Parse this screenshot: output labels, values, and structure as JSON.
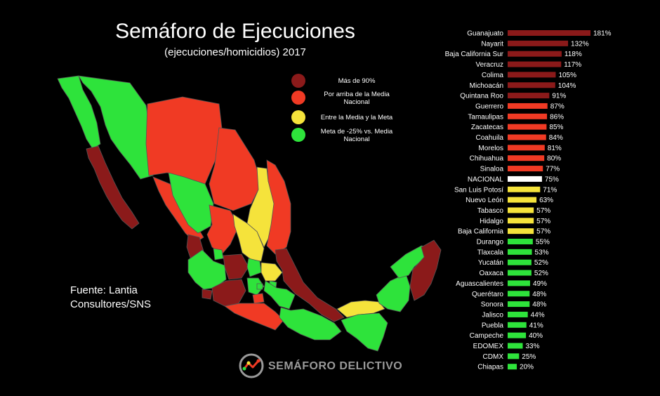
{
  "title": "Semáforo de Ejecuciones",
  "subtitle": "(ejecuciones/homicidios) 2017",
  "source": [
    "Fuente: Lantia",
    "Consultores/SNS"
  ],
  "brand": "SEMÁFORO DELICTIVO",
  "legend": [
    {
      "label": "Más de 90%",
      "color": "#8B1A1A"
    },
    {
      "label": "Por arriba de la Media Nacional",
      "color": "#F03A24"
    },
    {
      "label": "Entre la Media y la Meta",
      "color": "#F5E33B"
    },
    {
      "label": "Meta de -25% vs. Media Nacional",
      "color": "#2EE33B"
    }
  ],
  "colors": {
    "dark_red": "#8B1A1A",
    "red": "#F03A24",
    "yellow": "#F5E33B",
    "green": "#2EE33B",
    "national": "#FFFFFF"
  },
  "chart_data": {
    "type": "bar",
    "orientation": "horizontal",
    "title": "Semáforo de Ejecuciones",
    "xlabel": "",
    "ylabel": "",
    "xlim": [
      0,
      181
    ],
    "grid": false,
    "categories": [
      "Guanajuato",
      "Nayarit",
      "Baja California Sur",
      "Veracruz",
      "Colima",
      "Michoacán",
      "Quintana Roo",
      "Guerrero",
      "Tamaulipas",
      "Zacatecas",
      "Coahuila",
      "Morelos",
      "Chihuahua",
      "Sinaloa",
      "NACIONAL",
      "San Luis Potosí",
      "Nuevo León",
      "Tabasco",
      "Hidalgo",
      "Baja California",
      "Durango",
      "Tlaxcala",
      "Yucatán",
      "Oaxaca",
      "Aguascalientes",
      "Querétaro",
      "Sonora",
      "Jalisco",
      "Puebla",
      "Campeche",
      "EDOMEX",
      "CDMX",
      "Chiapas"
    ],
    "values": [
      181,
      132,
      118,
      117,
      105,
      104,
      91,
      87,
      86,
      85,
      84,
      81,
      80,
      77,
      75,
      71,
      63,
      57,
      57,
      57,
      55,
      53,
      52,
      52,
      49,
      48,
      48,
      44,
      41,
      40,
      33,
      25,
      20
    ],
    "value_labels": [
      "181%",
      "132%",
      "118%",
      "117%",
      "105%",
      "104%",
      "91%",
      "87%",
      "86%",
      "85%",
      "84%",
      "81%",
      "80%",
      "77%",
      "75%",
      "71%",
      "63%",
      "57%",
      "57%",
      "57%",
      "55%",
      "53%",
      "52%",
      "52%",
      "49%",
      "48%",
      "48%",
      "44%",
      "41%",
      "40%",
      "33%",
      "25%",
      "20%"
    ],
    "bar_colors": [
      "#8B1A1A",
      "#8B1A1A",
      "#8B1A1A",
      "#8B1A1A",
      "#8B1A1A",
      "#8B1A1A",
      "#8B1A1A",
      "#F03A24",
      "#F03A24",
      "#F03A24",
      "#F03A24",
      "#F03A24",
      "#F03A24",
      "#F03A24",
      "#FFFFFF",
      "#F5E33B",
      "#F5E33B",
      "#F5E33B",
      "#F5E33B",
      "#F5E33B",
      "#2EE33B",
      "#2EE33B",
      "#2EE33B",
      "#2EE33B",
      "#2EE33B",
      "#2EE33B",
      "#2EE33B",
      "#2EE33B",
      "#2EE33B",
      "#2EE33B",
      "#2EE33B",
      "#2EE33B",
      "#2EE33B"
    ]
  },
  "map_states": [
    {
      "name": "Baja California",
      "color": "#2EE33B"
    },
    {
      "name": "Baja California Sur",
      "color": "#8B1A1A"
    },
    {
      "name": "Sonora",
      "color": "#2EE33B"
    },
    {
      "name": "Chihuahua",
      "color": "#F03A24"
    },
    {
      "name": "Coahuila",
      "color": "#F03A24"
    },
    {
      "name": "Nuevo León",
      "color": "#F5E33B"
    },
    {
      "name": "Tamaulipas",
      "color": "#F03A24"
    },
    {
      "name": "Sinaloa",
      "color": "#F03A24"
    },
    {
      "name": "Durango",
      "color": "#2EE33B"
    },
    {
      "name": "Zacatecas",
      "color": "#F03A24"
    },
    {
      "name": "San Luis Potosí",
      "color": "#F5E33B"
    },
    {
      "name": "Nayarit",
      "color": "#8B1A1A"
    },
    {
      "name": "Aguascalientes",
      "color": "#2EE33B"
    },
    {
      "name": "Jalisco",
      "color": "#2EE33B"
    },
    {
      "name": "Guanajuato",
      "color": "#8B1A1A"
    },
    {
      "name": "Querétaro",
      "color": "#2EE33B"
    },
    {
      "name": "Hidalgo",
      "color": "#F5E33B"
    },
    {
      "name": "Veracruz",
      "color": "#8B1A1A"
    },
    {
      "name": "Colima",
      "color": "#8B1A1A"
    },
    {
      "name": "Michoacán",
      "color": "#8B1A1A"
    },
    {
      "name": "EDOMEX",
      "color": "#2EE33B"
    },
    {
      "name": "CDMX",
      "color": "#2EE33B"
    },
    {
      "name": "Tlaxcala",
      "color": "#2EE33B"
    },
    {
      "name": "Puebla",
      "color": "#2EE33B"
    },
    {
      "name": "Morelos",
      "color": "#F03A24"
    },
    {
      "name": "Guerrero",
      "color": "#F03A24"
    },
    {
      "name": "Oaxaca",
      "color": "#2EE33B"
    },
    {
      "name": "Tabasco",
      "color": "#F5E33B"
    },
    {
      "name": "Chiapas",
      "color": "#2EE33B"
    },
    {
      "name": "Campeche",
      "color": "#2EE33B"
    },
    {
      "name": "Yucatán",
      "color": "#2EE33B"
    },
    {
      "name": "Quintana Roo",
      "color": "#8B1A1A"
    }
  ]
}
